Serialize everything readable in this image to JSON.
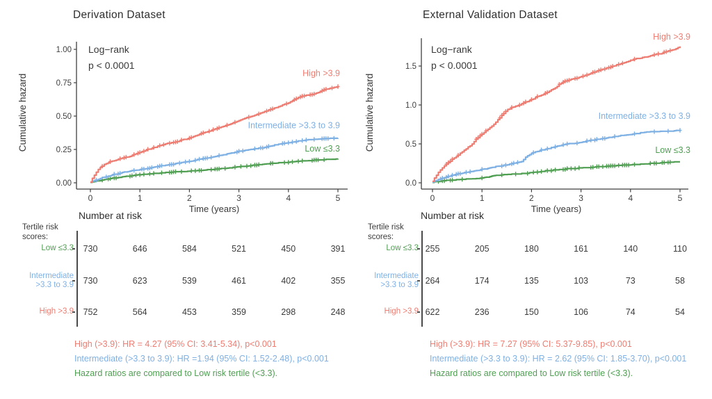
{
  "colors": {
    "high": "#ed7d72",
    "intermediate": "#7fb0e3",
    "low": "#4f9e52",
    "axis": "#3f3f3f",
    "text": "#3a3a3a"
  },
  "panels": [
    {
      "title": "Derivation Dataset",
      "y_axis_label": "Cumulative hazard",
      "x_axis_label": "Time (years)",
      "risk_table": {
        "header": "Number at risk",
        "axis_label": "Tertile risk\nscores:",
        "rows": [
          {
            "label": "Low ≤3.3",
            "color_key": "low",
            "values": [
              "730",
              "646",
              "584",
              "521",
              "450",
              "391"
            ]
          },
          {
            "label": "Intermediate\n>3.3 to 3.9",
            "color_key": "intermediate",
            "values": [
              "730",
              "623",
              "539",
              "461",
              "402",
              "355"
            ]
          },
          {
            "label": "High >3.9",
            "color_key": "high",
            "values": [
              "752",
              "564",
              "453",
              "359",
              "298",
              "248"
            ]
          }
        ]
      },
      "annotations": [
        {
          "text": "High (>3.9): HR = 4.27 (95% CI: 3.41-5.34), p<0.001",
          "color_key": "high"
        },
        {
          "text": "Intermediate (>3.3 to 3.9): HR =1.94 (95% CI: 1.52-2.48), p<0.001",
          "color_key": "intermediate"
        },
        {
          "text": "Hazard ratios are compared to Low risk tertile (<3.3).",
          "color_key": "low"
        }
      ]
    },
    {
      "title": "External Validation Dataset",
      "y_axis_label": "Cumulative hazard",
      "x_axis_label": "Time (years)",
      "risk_table": {
        "header": "Number at risk",
        "axis_label": "Tertile risk\nscores:",
        "rows": [
          {
            "label": "Low ≤3.3",
            "color_key": "low",
            "values": [
              "255",
              "205",
              "180",
              "161",
              "140",
              "110"
            ]
          },
          {
            "label": "Intermediate\n>3.3 to 3.9",
            "color_key": "intermediate",
            "values": [
              "264",
              "174",
              "135",
              "103",
              "73",
              "58"
            ]
          },
          {
            "label": "High >3.9",
            "color_key": "high",
            "values": [
              "622",
              "236",
              "150",
              "106",
              "74",
              "54"
            ]
          }
        ]
      },
      "annotations": [
        {
          "text": "High (>3.9): HR = 7.27 (95% CI: 5.37-9.85), p<0.001",
          "color_key": "high"
        },
        {
          "text": "Intermediate (>3.3 to 3.9): HR = 2.62 (95% CI: 1.85-3.70), p<0.001",
          "color_key": "intermediate"
        },
        {
          "text": "Hazard ratios are compared to Low risk tertile (<3.3).",
          "color_key": "low"
        }
      ]
    }
  ],
  "chart_data": [
    {
      "type": "line",
      "title": "Derivation Dataset",
      "xlabel": "Time (years)",
      "ylabel": "Cumulative hazard",
      "xlim": [
        0,
        5
      ],
      "ylim": [
        0,
        1.0
      ],
      "xticks": [
        "0",
        "1",
        "2",
        "3",
        "4",
        "5"
      ],
      "yticks": {
        "labels": [
          "0.00",
          "0.25",
          "0.50",
          "0.75",
          "1.00"
        ],
        "values": [
          0,
          0.25,
          0.5,
          0.75,
          1.0
        ]
      },
      "annotation": {
        "line1": "Log−rank",
        "line2": "p < 0.0001"
      },
      "legend_position": "curve-end-labels",
      "grid": false,
      "series": [
        {
          "name": "High >3.9",
          "label": "High >3.9",
          "color_key": "high",
          "label_y": 0.8,
          "x": [
            0,
            0.05,
            0.1,
            0.15,
            0.2,
            0.25,
            0.35,
            0.5,
            0.65,
            0.8,
            1,
            1.25,
            1.5,
            1.75,
            2,
            2.25,
            2.5,
            2.75,
            3,
            3.25,
            3.5,
            3.75,
            4,
            4.2,
            4.35,
            4.5,
            4.75,
            5
          ],
          "y": [
            0.005,
            0.04,
            0.07,
            0.095,
            0.115,
            0.13,
            0.15,
            0.17,
            0.185,
            0.2,
            0.23,
            0.26,
            0.29,
            0.31,
            0.335,
            0.37,
            0.4,
            0.43,
            0.465,
            0.5,
            0.53,
            0.565,
            0.6,
            0.64,
            0.655,
            0.665,
            0.7,
            0.72
          ]
        },
        {
          "name": "Intermediate >3.3 to 3.9",
          "label": "Intermediate >3.3 to 3.9",
          "color_key": "intermediate",
          "label_y": 0.41,
          "x": [
            0,
            0.1,
            0.25,
            0.5,
            0.75,
            1,
            1.25,
            1.5,
            1.75,
            2,
            2.25,
            2.5,
            2.75,
            3,
            3.25,
            3.5,
            3.75,
            4,
            4.25,
            4.5,
            4.75,
            5
          ],
          "y": [
            0.005,
            0.02,
            0.04,
            0.065,
            0.085,
            0.1,
            0.115,
            0.13,
            0.145,
            0.16,
            0.18,
            0.195,
            0.215,
            0.235,
            0.25,
            0.265,
            0.285,
            0.3,
            0.315,
            0.325,
            0.33,
            0.335
          ]
        },
        {
          "name": "Low ≤3.3",
          "label": "Low ≤3.3",
          "color_key": "low",
          "label_y": 0.235,
          "x": [
            0,
            0.25,
            0.5,
            0.75,
            1,
            1.5,
            2,
            2.5,
            3,
            3.5,
            4,
            4.5,
            5
          ],
          "y": [
            0.003,
            0.022,
            0.038,
            0.05,
            0.06,
            0.075,
            0.088,
            0.1,
            0.12,
            0.14,
            0.155,
            0.168,
            0.18
          ]
        }
      ]
    },
    {
      "type": "line",
      "title": "External Validation Dataset",
      "xlabel": "Time (years)",
      "ylabel": "Cumulative hazard",
      "xlim": [
        0,
        5
      ],
      "ylim": [
        0,
        1.75
      ],
      "xticks": [
        "0",
        "1",
        "2",
        "3",
        "4",
        "5"
      ],
      "yticks": {
        "labels": [
          "0.0",
          "0.5",
          "1.0",
          "1.5"
        ],
        "values": [
          0,
          0.5,
          1.0,
          1.5
        ]
      },
      "annotation": {
        "line1": "Log−rank",
        "line2": "p < 0.0001"
      },
      "legend_position": "curve-end-labels",
      "grid": false,
      "series": [
        {
          "name": "High >3.9",
          "label": "High >3.9",
          "color_key": "high",
          "label_y": 1.84,
          "x": [
            0,
            0.05,
            0.1,
            0.15,
            0.2,
            0.25,
            0.3,
            0.4,
            0.5,
            0.6,
            0.7,
            0.8,
            0.9,
            1,
            1.1,
            1.2,
            1.35,
            1.5,
            1.6,
            1.75,
            1.9,
            2,
            2.1,
            2.25,
            2.4,
            2.5,
            2.6,
            2.75,
            3,
            3.1,
            3.25,
            3.4,
            3.5,
            3.75,
            4,
            4.1,
            4.25,
            4.4,
            4.5,
            4.6,
            4.75,
            4.9,
            5
          ],
          "y": [
            0.02,
            0.07,
            0.12,
            0.16,
            0.19,
            0.22,
            0.25,
            0.3,
            0.34,
            0.4,
            0.45,
            0.5,
            0.57,
            0.63,
            0.68,
            0.73,
            0.83,
            0.93,
            0.97,
            1.0,
            1.04,
            1.07,
            1.1,
            1.14,
            1.19,
            1.23,
            1.28,
            1.32,
            1.36,
            1.38,
            1.42,
            1.45,
            1.47,
            1.52,
            1.57,
            1.59,
            1.61,
            1.63,
            1.65,
            1.66,
            1.69,
            1.72,
            1.75
          ]
        },
        {
          "name": "Intermediate >3.3 to 3.9",
          "label": "Intermediate >3.3 to 3.9",
          "color_key": "intermediate",
          "label_y": 0.82,
          "x": [
            0,
            0.1,
            0.25,
            0.4,
            0.5,
            0.65,
            0.8,
            1,
            1.2,
            1.4,
            1.6,
            1.8,
            1.9,
            2,
            2.2,
            2.4,
            2.5,
            2.75,
            3,
            3.25,
            3.5,
            3.75,
            4,
            4.2,
            4.4,
            4.6,
            4.8,
            5
          ],
          "y": [
            0.01,
            0.035,
            0.07,
            0.095,
            0.11,
            0.13,
            0.15,
            0.17,
            0.2,
            0.22,
            0.245,
            0.27,
            0.34,
            0.38,
            0.42,
            0.45,
            0.465,
            0.5,
            0.52,
            0.55,
            0.575,
            0.6,
            0.62,
            0.64,
            0.655,
            0.66,
            0.665,
            0.67
          ]
        },
        {
          "name": "Low ≤3.3",
          "label": "Low ≤3.3",
          "color_key": "low",
          "label_y": 0.385,
          "x": [
            0,
            0.15,
            0.3,
            0.5,
            0.75,
            1,
            1.15,
            1.3,
            1.5,
            1.75,
            2,
            2.25,
            2.5,
            2.75,
            3,
            3.25,
            3.5,
            3.75,
            4,
            4.25,
            4.5,
            4.75,
            5
          ],
          "y": [
            0.005,
            0.02,
            0.03,
            0.04,
            0.05,
            0.06,
            0.08,
            0.095,
            0.105,
            0.115,
            0.13,
            0.15,
            0.165,
            0.18,
            0.19,
            0.2,
            0.21,
            0.22,
            0.23,
            0.24,
            0.25,
            0.26,
            0.27
          ]
        }
      ]
    }
  ]
}
